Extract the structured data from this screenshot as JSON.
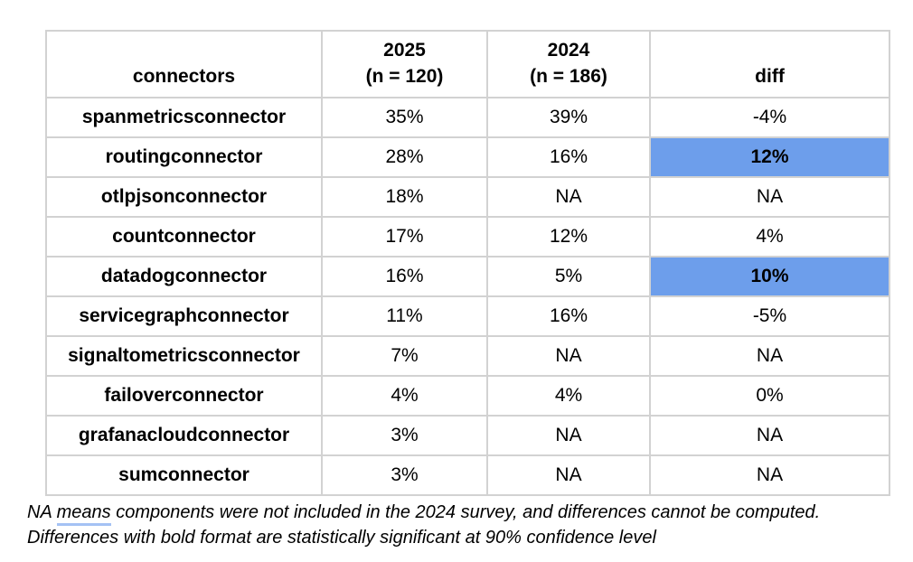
{
  "colors": {
    "highlight_blue": "#6d9eeb",
    "grid_border": "#d2d2d2",
    "note_underline": "#a4c2f4"
  },
  "table": {
    "headers": {
      "connectors": "connectors",
      "y2025_line1": "2025",
      "y2025_line2": "(n = 120)",
      "y2024_line1": "2024",
      "y2024_line2": "(n = 186)",
      "diff": "diff"
    },
    "rows": [
      {
        "name": "spanmetricsconnector",
        "y2025": "35%",
        "y2024": "39%",
        "diff": "-4%",
        "diff_highlight": false
      },
      {
        "name": "routingconnector",
        "y2025": "28%",
        "y2024": "16%",
        "diff": "12%",
        "diff_highlight": true
      },
      {
        "name": "otlpjsonconnector",
        "y2025": "18%",
        "y2024": "NA",
        "diff": "NA",
        "diff_highlight": false
      },
      {
        "name": "countconnector",
        "y2025": "17%",
        "y2024": "12%",
        "diff": "4%",
        "diff_highlight": false
      },
      {
        "name": "datadogconnector",
        "y2025": "16%",
        "y2024": "5%",
        "diff": "10%",
        "diff_highlight": true
      },
      {
        "name": "servicegraphconnector",
        "y2025": "11%",
        "y2024": "16%",
        "diff": "-5%",
        "diff_highlight": false
      },
      {
        "name": "signaltometricsconnector",
        "y2025": "7%",
        "y2024": "NA",
        "diff": "NA",
        "diff_highlight": false
      },
      {
        "name": "failoverconnector",
        "y2025": "4%",
        "y2024": "4%",
        "diff": "0%",
        "diff_highlight": false
      },
      {
        "name": "grafanacloudconnector",
        "y2025": "3%",
        "y2024": "NA",
        "diff": "NA",
        "diff_highlight": false
      },
      {
        "name": "sumconnector",
        "y2025": "3%",
        "y2024": "NA",
        "diff": "NA",
        "diff_highlight": false
      }
    ]
  },
  "footnote": {
    "line1_before": "NA ",
    "line1_underlined_word": "means",
    "line1_after": " components were not included in the 2024 survey, and differences cannot be computed.",
    "line2": "Differences with bold format are statistically significant at 90% confidence level"
  },
  "chart_data": {
    "type": "table",
    "title": "",
    "columns": [
      "connectors",
      "2025 (n = 120)",
      "2024 (n = 186)",
      "diff"
    ],
    "categories": [
      "spanmetricsconnector",
      "routingconnector",
      "otlpjsonconnector",
      "countconnector",
      "datadogconnector",
      "servicegraphconnector",
      "signaltometricsconnector",
      "failoverconnector",
      "grafanacloudconnector",
      "sumconnector"
    ],
    "series": [
      {
        "name": "2025 (n = 120)",
        "values_pct": [
          35,
          28,
          18,
          17,
          16,
          11,
          7,
          4,
          3,
          3
        ]
      },
      {
        "name": "2024 (n = 186)",
        "values_pct": [
          39,
          16,
          null,
          12,
          5,
          16,
          null,
          4,
          null,
          null
        ]
      },
      {
        "name": "diff",
        "values_pct": [
          -4,
          12,
          null,
          4,
          10,
          -5,
          null,
          0,
          null,
          null
        ]
      }
    ],
    "na_value_label": "NA",
    "highlighted_diff_rows": [
      "routingconnector",
      "datadogconnector"
    ],
    "highlight_meaning": "statistically significant at 90% confidence level",
    "notes": [
      "NA means components were not included in the 2024 survey, and differences cannot be computed.",
      "Differences with bold format are statistically significant at 90% confidence level"
    ]
  }
}
